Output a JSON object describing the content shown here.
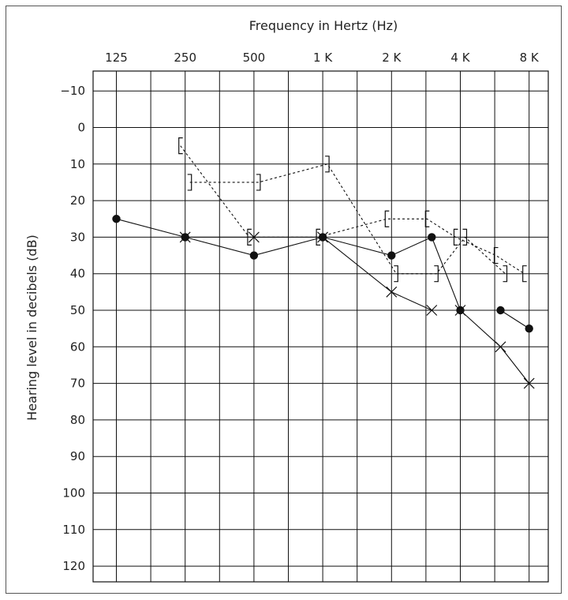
{
  "chart_data": {
    "type": "line",
    "title": "Frequency in Hertz (Hz)",
    "xlabel": "Frequency in Hertz (Hz)",
    "ylabel": "Hearing level in decibels (dB)",
    "x_tick_labels": [
      "125",
      "250",
      "500",
      "1 K",
      "2 K",
      "4 K",
      "8 K"
    ],
    "x_ticks_hz": [
      125,
      250,
      500,
      1000,
      2000,
      4000,
      8000
    ],
    "y_tick_labels": [
      "−10",
      "0",
      "10",
      "20",
      "30",
      "40",
      "50",
      "60",
      "70",
      "80",
      "90",
      "100",
      "110",
      "120"
    ],
    "ylim": [
      -10,
      120
    ],
    "y_inverted": true,
    "x_scale": "log",
    "grid": true,
    "series": [
      {
        "marker": "filled-circle",
        "line": "solid",
        "points": [
          {
            "x": 125,
            "y": 25
          },
          {
            "x": 250,
            "y": 30
          },
          {
            "x": 500,
            "y": 35
          },
          {
            "x": 1000,
            "y": 30
          },
          {
            "x": 2000,
            "y": 35
          },
          {
            "x": 3000,
            "y": 30
          },
          {
            "x": 4000,
            "y": 50
          },
          {
            "x": 6000,
            "y": 50
          },
          {
            "x": 8000,
            "y": 55
          }
        ]
      },
      {
        "marker": "x-cross",
        "line": "solid",
        "points": [
          {
            "x": 250,
            "y": 30
          },
          {
            "x": 500,
            "y": 30
          },
          {
            "x": 1000,
            "y": 30
          },
          {
            "x": 2000,
            "y": 45
          },
          {
            "x": 3000,
            "y": 50
          },
          {
            "x": 4000,
            "y": 50
          },
          {
            "x": 6000,
            "y": 60
          },
          {
            "x": 8000,
            "y": 70
          }
        ]
      },
      {
        "marker": "left-bracket",
        "line": "dashed",
        "points": [
          {
            "x": 250,
            "y": 5
          },
          {
            "x": 500,
            "y": 30
          },
          {
            "x": 1000,
            "y": 30
          },
          {
            "x": 2000,
            "y": 25
          },
          {
            "x": 3000,
            "y": 25
          },
          {
            "x": 4000,
            "y": 30
          },
          {
            "x": 6000,
            "y": 35
          },
          {
            "x": 8000,
            "y": 40
          }
        ]
      },
      {
        "marker": "right-bracket",
        "line": "dashed",
        "points": [
          {
            "x": 250,
            "y": 15
          },
          {
            "x": 500,
            "y": 15
          },
          {
            "x": 1000,
            "y": 10
          },
          {
            "x": 2000,
            "y": 40
          },
          {
            "x": 3000,
            "y": 40
          },
          {
            "x": 4000,
            "y": 30
          },
          {
            "x": 6000,
            "y": 40
          }
        ]
      }
    ]
  }
}
